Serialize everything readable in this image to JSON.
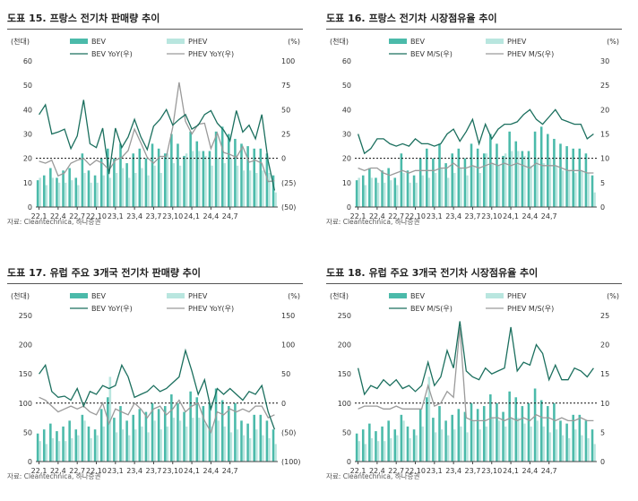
{
  "colors": {
    "bev": "#4bbaaa",
    "phev": "#b9e6df",
    "bevLine": "#1b6f5e",
    "phevLine": "#9a9a9a"
  },
  "source_text": "자료: Cleantechnica, 하나증권",
  "chart_data": [
    {
      "type": "bar+line",
      "fig_no": "도표 15.",
      "title": "프랑스 전기차 판매량 추이",
      "left_unit": "(천대)",
      "right_unit": "(%)",
      "ylim_left": [
        0,
        60
      ],
      "yticks_left": [
        "0",
        "10",
        "20",
        "30",
        "40",
        "50",
        "60"
      ],
      "ylim_right": [
        -50,
        100
      ],
      "yticks_right": [
        "(50)",
        "(25)",
        "0",
        "25",
        "50",
        "75",
        "100"
      ],
      "ref_right": 0,
      "xticks": [
        "22,1",
        "22,4",
        "22,7",
        "22,10",
        "23,1",
        "23,4",
        "23,7",
        "23,10",
        "24,1",
        "24,4",
        "24,7"
      ],
      "legend": {
        "bev": "BEV",
        "phev": "PHEV",
        "bevLine": "BEV YoY(우)",
        "phevLine": "PHEV YoY(우)"
      },
      "bars": {
        "bev": [
          11,
          13,
          16,
          12,
          15,
          16,
          12,
          22,
          15,
          13,
          20,
          24,
          20,
          26,
          18,
          22,
          24,
          20,
          26,
          24,
          22,
          30,
          26,
          21,
          31,
          27,
          23,
          23,
          31,
          33,
          30,
          28,
          26,
          25,
          24,
          24,
          22,
          13
        ],
        "phev": [
          12,
          9,
          12,
          10,
          10,
          11,
          9,
          14,
          10,
          10,
          13,
          12,
          14,
          16,
          12,
          14,
          16,
          13,
          17,
          14,
          22,
          18,
          17,
          22,
          23,
          23,
          21,
          17,
          20,
          18,
          20,
          17,
          15,
          15,
          14,
          15,
          14,
          6
        ]
      },
      "lines": {
        "bevLine": [
          45,
          55,
          25,
          27,
          30,
          10,
          23,
          60,
          15,
          11,
          31,
          -16,
          31,
          11,
          22,
          40,
          22,
          9,
          33,
          40,
          50,
          34,
          40,
          45,
          30,
          34,
          45,
          49,
          36,
          29,
          18,
          49,
          27,
          34,
          20,
          45,
          -3,
          -33
        ],
        "phevLine": [
          -3,
          -5,
          -2,
          -18,
          -15,
          -5,
          -2,
          0,
          -7,
          -2,
          -5,
          -12,
          -2,
          1,
          8,
          30,
          16,
          1,
          -5,
          2,
          2,
          32,
          78,
          38,
          25,
          35,
          36,
          10,
          26,
          6,
          4,
          1,
          12,
          -4,
          -2,
          -5,
          -24,
          -23
        ]
      }
    },
    {
      "type": "bar+line",
      "fig_no": "도표 16.",
      "title": "프랑스 전기차 시장점유율 추이",
      "left_unit": "(천대)",
      "right_unit": "(%)",
      "ylim_left": [
        0,
        60
      ],
      "yticks_left": [
        "0",
        "10",
        "20",
        "30",
        "40",
        "50",
        "60"
      ],
      "ylim_right": [
        0,
        30
      ],
      "yticks_right": [
        "0",
        "5",
        "10",
        "15",
        "20",
        "25",
        "30"
      ],
      "ref_right": 10,
      "xticks": [
        "22,1",
        "22,4",
        "22,7",
        "22,10",
        "23,1",
        "23,4",
        "23,7",
        "23,10",
        "24,1",
        "24,4",
        "24,7"
      ],
      "legend": {
        "bev": "BEV",
        "phev": "PHEV",
        "bevLine": "BEV M/S(우)",
        "phevLine": "PHEV M/S(우)"
      },
      "bars": {
        "bev": [
          11,
          13,
          16,
          12,
          15,
          16,
          12,
          22,
          15,
          13,
          20,
          24,
          20,
          26,
          18,
          22,
          24,
          20,
          26,
          24,
          22,
          30,
          26,
          21,
          31,
          27,
          23,
          23,
          31,
          33,
          30,
          28,
          26,
          25,
          24,
          24,
          22,
          13
        ],
        "phev": [
          12,
          9,
          12,
          10,
          10,
          11,
          9,
          14,
          10,
          10,
          13,
          12,
          14,
          16,
          12,
          14,
          16,
          13,
          17,
          14,
          22,
          18,
          17,
          22,
          23,
          23,
          21,
          17,
          20,
          18,
          20,
          17,
          15,
          15,
          14,
          15,
          14,
          6
        ]
      },
      "lines": {
        "bevLine": [
          15,
          11,
          12,
          14,
          14,
          13,
          12.5,
          13,
          12.5,
          14,
          13,
          13,
          12.5,
          13,
          15,
          16,
          13.5,
          15.5,
          18,
          13,
          17,
          14,
          16,
          17,
          17,
          17.5,
          19,
          20,
          18,
          17,
          18.5,
          20,
          18,
          17.5,
          17,
          17,
          14,
          15
        ],
        "phevLine": [
          8,
          7.5,
          8,
          8,
          7,
          6.5,
          7,
          7.5,
          7,
          7.5,
          7.5,
          7.5,
          7.5,
          8,
          8,
          9,
          8,
          8,
          8.5,
          8,
          8.5,
          9,
          8.5,
          9,
          8.5,
          9,
          8.5,
          8,
          9,
          8.5,
          8.5,
          8.5,
          8,
          7.5,
          7.5,
          7.5,
          7,
          7
        ]
      }
    },
    {
      "type": "bar+line",
      "fig_no": "도표 17.",
      "title": "유럽 주요 3개국 전기차 판매량 추이",
      "left_unit": "(천대)",
      "right_unit": "(%)",
      "ylim_left": [
        0,
        250
      ],
      "yticks_left": [
        "0",
        "50",
        "100",
        "150",
        "200",
        "250"
      ],
      "ylim_right": [
        -100,
        150
      ],
      "yticks_right": [
        "(100)",
        "(50)",
        "0",
        "50",
        "100",
        "150"
      ],
      "ref_right": 0,
      "xticks": [
        "22,1",
        "22,4",
        "22,7",
        "22,10",
        "23,1",
        "23,4",
        "23,7",
        "23,10",
        "24,1",
        "24,4",
        "24,7"
      ],
      "legend": {
        "bev": "BEV",
        "phev": "PHEV",
        "bevLine": "BEV YoY(우)",
        "phevLine": "PHEV YoY(우)"
      },
      "bars": {
        "bev": [
          48,
          55,
          65,
          52,
          60,
          70,
          55,
          80,
          60,
          55,
          90,
          110,
          75,
          95,
          70,
          80,
          90,
          85,
          100,
          90,
          95,
          115,
          100,
          85,
          120,
          110,
          95,
          100,
          125,
          105,
          95,
          100,
          70,
          65,
          80,
          80,
          70,
          55
        ],
        "phev": [
          35,
          30,
          40,
          35,
          35,
          40,
          45,
          70,
          40,
          45,
          60,
          145,
          50,
          55,
          45,
          55,
          60,
          50,
          70,
          55,
          60,
          75,
          70,
          60,
          75,
          75,
          65,
          60,
          70,
          60,
          50,
          55,
          45,
          40,
          55,
          45,
          40,
          30
        ]
      },
      "lines": {
        "bevLine": [
          50,
          65,
          20,
          10,
          12,
          5,
          25,
          -5,
          20,
          15,
          30,
          25,
          30,
          65,
          45,
          10,
          15,
          20,
          30,
          20,
          25,
          35,
          45,
          90,
          55,
          15,
          40,
          -10,
          25,
          15,
          25,
          15,
          5,
          20,
          15,
          30,
          -15,
          -45
        ],
        "phevLine": [
          10,
          5,
          -5,
          -15,
          -10,
          -5,
          -10,
          -5,
          -15,
          -20,
          0,
          -35,
          -10,
          -15,
          -20,
          0,
          -10,
          -25,
          -10,
          -5,
          -20,
          -10,
          5,
          -15,
          -5,
          0,
          -30,
          -50,
          -15,
          -20,
          -10,
          -15,
          -10,
          -15,
          -5,
          -5,
          -25,
          -20
        ]
      }
    },
    {
      "type": "bar+line",
      "fig_no": "도표 18.",
      "title": "유럽 주요 3개국 전기차 시장점유율 추이",
      "left_unit": "(천대)",
      "right_unit": "(%)",
      "ylim_left": [
        0,
        250
      ],
      "yticks_left": [
        "0",
        "50",
        "100",
        "150",
        "200",
        "250"
      ],
      "ylim_right": [
        0,
        25
      ],
      "yticks_right": [
        "0",
        "5",
        "10",
        "15",
        "20",
        "25"
      ],
      "ref_right": 10,
      "xticks": [
        "22,1",
        "22,4",
        "22,7",
        "22,10",
        "23,1",
        "23,4",
        "23,7",
        "23,10",
        "24,1",
        "24,4",
        "24,7"
      ],
      "legend": {
        "bev": "BEV",
        "phev": "PHEV",
        "bevLine": "BEV M/S(우)",
        "phevLine": "PHEV M/S(우)"
      },
      "bars": {
        "bev": [
          48,
          55,
          65,
          52,
          60,
          70,
          55,
          80,
          60,
          55,
          90,
          110,
          75,
          95,
          70,
          80,
          90,
          85,
          100,
          90,
          95,
          115,
          100,
          85,
          120,
          110,
          95,
          100,
          125,
          105,
          95,
          100,
          70,
          65,
          80,
          80,
          70,
          55
        ],
        "phev": [
          35,
          30,
          40,
          35,
          35,
          40,
          45,
          70,
          40,
          45,
          60,
          145,
          50,
          55,
          45,
          55,
          60,
          50,
          70,
          55,
          60,
          75,
          70,
          60,
          75,
          75,
          65,
          60,
          70,
          60,
          50,
          55,
          45,
          40,
          55,
          45,
          40,
          30
        ]
      },
      "lines": {
        "bevLine": [
          16,
          11.5,
          13,
          12.5,
          14,
          13,
          14,
          12.5,
          13,
          12,
          13,
          17,
          13,
          14.5,
          19,
          16,
          24,
          15.5,
          14.5,
          14,
          16,
          15,
          15.5,
          16,
          23,
          15.5,
          17,
          16.5,
          20,
          18.5,
          14,
          16.5,
          14,
          14,
          16,
          15.5,
          14.5,
          16
        ],
        "phevLine": [
          9,
          9.5,
          9.5,
          9.5,
          9,
          9,
          9.5,
          9,
          9,
          9,
          9,
          13,
          9.5,
          10,
          12,
          11,
          23,
          7.5,
          7,
          7,
          7,
          7.5,
          7.5,
          7,
          7.5,
          7,
          7.5,
          7,
          8,
          7.5,
          7.5,
          7,
          7.5,
          7,
          7,
          7.5,
          7,
          7
        ]
      }
    }
  ]
}
